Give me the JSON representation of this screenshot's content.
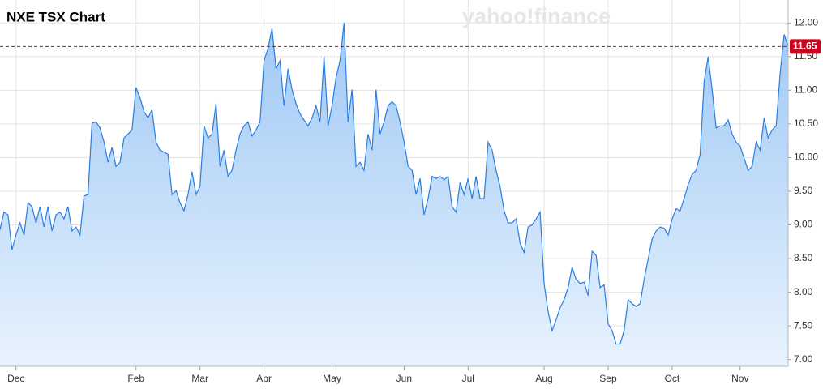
{
  "chart_data": {
    "type": "area",
    "title": "NXE TSX Chart",
    "watermark": "yahoo!finance",
    "series": [
      {
        "name": "NXE",
        "color": "#2b7de0",
        "values": [
          8.93,
          9.19,
          9.15,
          8.63,
          8.85,
          9.03,
          8.85,
          9.33,
          9.27,
          9.03,
          9.27,
          8.97,
          9.27,
          8.91,
          9.15,
          9.19,
          9.09,
          9.27,
          8.91,
          8.97,
          8.85,
          9.43,
          9.45,
          10.51,
          10.53,
          10.44,
          10.23,
          9.93,
          10.15,
          9.87,
          9.93,
          10.29,
          10.35,
          10.41,
          11.04,
          10.89,
          10.68,
          10.59,
          10.71,
          10.23,
          10.11,
          10.08,
          10.05,
          9.45,
          9.51,
          9.33,
          9.21,
          9.45,
          9.79,
          9.45,
          9.57,
          10.47,
          10.29,
          10.35,
          10.8,
          9.87,
          10.11,
          9.72,
          9.81,
          10.11,
          10.35,
          10.47,
          10.53,
          10.32,
          10.41,
          10.53,
          11.44,
          11.62,
          11.92,
          11.32,
          11.44,
          10.77,
          11.32,
          11.01,
          10.8,
          10.65,
          10.56,
          10.47,
          10.59,
          10.77,
          10.53,
          11.5,
          10.47,
          10.77,
          11.19,
          11.44,
          12.0,
          10.53,
          11.01,
          9.87,
          9.93,
          9.81,
          10.35,
          10.11,
          11.01,
          10.35,
          10.53,
          10.77,
          10.83,
          10.77,
          10.53,
          10.23,
          9.87,
          9.81,
          9.45,
          9.69,
          9.15,
          9.39,
          9.72,
          9.69,
          9.72,
          9.67,
          9.72,
          9.27,
          9.19,
          9.63,
          9.45,
          9.69,
          9.39,
          9.72,
          9.39,
          9.39,
          10.23,
          10.11,
          9.81,
          9.57,
          9.21,
          9.03,
          9.03,
          9.09,
          8.73,
          8.59,
          8.97,
          9.0,
          9.09,
          9.19,
          8.13,
          7.71,
          7.43,
          7.59,
          7.77,
          7.89,
          8.07,
          8.37,
          8.19,
          8.13,
          8.15,
          7.95,
          8.61,
          8.55,
          8.07,
          8.11,
          7.53,
          7.43,
          7.23,
          7.23,
          7.43,
          7.89,
          7.83,
          7.79,
          7.83,
          8.19,
          8.49,
          8.79,
          8.91,
          8.97,
          8.95,
          8.85,
          9.09,
          9.24,
          9.21,
          9.39,
          9.6,
          9.75,
          9.81,
          10.05,
          11.13,
          11.5,
          11.01,
          10.44,
          10.47,
          10.47,
          10.56,
          10.35,
          10.23,
          10.17,
          9.99,
          9.81,
          9.87,
          10.23,
          10.11,
          10.59,
          10.29,
          10.41,
          10.47,
          11.25,
          11.83,
          11.65
        ]
      }
    ],
    "xlim": [
      0,
      197
    ],
    "xticks": [
      {
        "value": 4,
        "label": "Dec"
      },
      {
        "value": 34,
        "label": "Feb"
      },
      {
        "value": 50,
        "label": "Mar"
      },
      {
        "value": 66,
        "label": "Apr"
      },
      {
        "value": 83,
        "label": "May"
      },
      {
        "value": 101,
        "label": "Jun"
      },
      {
        "value": 117,
        "label": "Jul"
      },
      {
        "value": 136,
        "label": "Aug"
      },
      {
        "value": 152,
        "label": "Sep"
      },
      {
        "value": 168,
        "label": "Oct"
      },
      {
        "value": 185,
        "label": "Nov"
      }
    ],
    "ylim": [
      6.9,
      12.34
    ],
    "yticks": [
      {
        "value": 7,
        "label": "7.00"
      },
      {
        "value": 7.5,
        "label": "7.50"
      },
      {
        "value": 8,
        "label": "8.00"
      },
      {
        "value": 8.5,
        "label": "8.50"
      },
      {
        "value": 9,
        "label": "9.00"
      },
      {
        "value": 9.5,
        "label": "9.50"
      },
      {
        "value": 10,
        "label": "10.00"
      },
      {
        "value": 10.5,
        "label": "10.50"
      },
      {
        "value": 11,
        "label": "11.00"
      },
      {
        "value": 11.5,
        "label": "11.50"
      },
      {
        "value": 12,
        "label": "12.00"
      }
    ],
    "grid": true,
    "price_line_color": "#d0021b"
  }
}
